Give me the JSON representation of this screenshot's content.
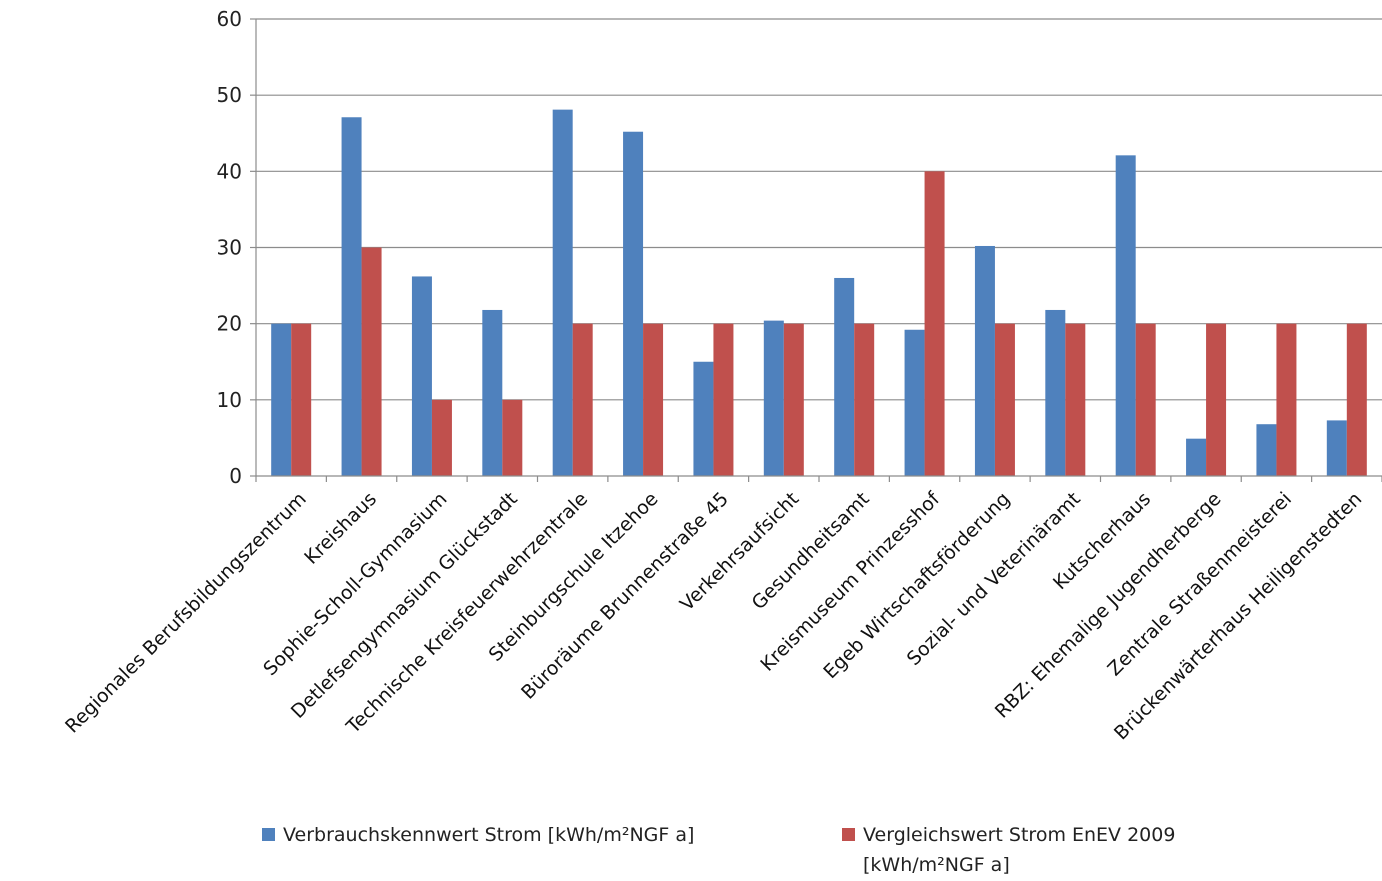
{
  "chart_data": {
    "type": "bar",
    "categories": [
      "Regionales Berufsbildungszentrum",
      "Kreishaus",
      "Sophie-Scholl-Gymnasium",
      "Detlefsengymnasium Glückstadt",
      "Technische Kreisfeuerwehrzentrale",
      "Steinburgschule Itzehoe",
      "Büroräume Brunnenstraße 45",
      "Verkehrsaufsicht",
      "Gesundheitsamt",
      "Kreismuseum Prinzesshof",
      "Egeb Wirtschaftsförderung",
      "Sozial- und Veterinäramt",
      "Kutscherhaus",
      "RBZ: Ehemalige Jugendherberge",
      "Zentrale Straßenmeisterei",
      "Brückenwärterhaus Heiligenstedten"
    ],
    "series": [
      {
        "name": "Verbrauchskennwert Strom [kWh/m²NGF a]",
        "color": "#4f81bd",
        "values": [
          20,
          47.1,
          26.2,
          21.8,
          48.1,
          45.2,
          15,
          20.4,
          26,
          19.2,
          30.2,
          21.8,
          42.1,
          4.9,
          6.8,
          7.3
        ]
      },
      {
        "name": "Vergleichswert Strom EnEV 2009\n[kWh/m²NGF a]",
        "color": "#c0504d",
        "values": [
          20,
          30,
          10,
          10,
          20,
          20,
          20,
          20,
          20,
          40,
          20,
          20,
          20,
          20,
          20,
          20
        ]
      }
    ],
    "ylim": [
      0,
      60
    ],
    "yticks": [
      "0",
      "10",
      "20",
      "30",
      "40",
      "50",
      "60"
    ],
    "grid": true,
    "legend_position": "bottom"
  }
}
